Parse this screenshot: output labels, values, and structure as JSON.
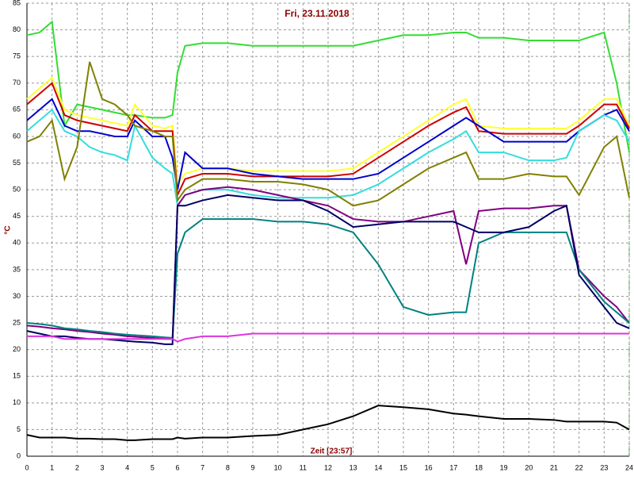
{
  "chart_data": {
    "type": "line",
    "title": "Fri, 23.11.2018",
    "xlabel": "Zeit [23:57]",
    "ylabel": "°C",
    "x": [
      0,
      0.5,
      1,
      1.5,
      2,
      2.5,
      3,
      3.5,
      4,
      4.3,
      5,
      5.5,
      5.8,
      6,
      6.3,
      7,
      8,
      9,
      10,
      11,
      12,
      13,
      14,
      15,
      16,
      17,
      17.5,
      18,
      19,
      20,
      21,
      21.5,
      22,
      23,
      23.5,
      24
    ],
    "series": [
      {
        "color": "#33dd33",
        "values": [
          79,
          79.5,
          81.5,
          62,
          66,
          65.5,
          65,
          64.5,
          64,
          64,
          63.5,
          63.5,
          64,
          72,
          77,
          77.5,
          77.5,
          77,
          77,
          77,
          77,
          77,
          78,
          79,
          79,
          79.5,
          79.5,
          78.5,
          78.5,
          78,
          78,
          78,
          78,
          79.5,
          70,
          57
        ]
      },
      {
        "color": "#ffff33",
        "values": [
          67,
          69,
          71,
          65,
          64,
          63.5,
          63,
          62.5,
          62,
          66,
          62,
          61.5,
          62,
          51,
          53,
          54,
          54,
          53.5,
          53.5,
          53.5,
          53.5,
          54,
          57,
          60,
          63,
          66,
          67,
          62,
          61.5,
          61.5,
          61.5,
          61.5,
          63,
          67,
          67,
          62
        ]
      },
      {
        "color": "#cc0000",
        "values": [
          66,
          68,
          70,
          64,
          63,
          62.5,
          62,
          61.5,
          61,
          64,
          61,
          61,
          61,
          49,
          52,
          53,
          53,
          52.5,
          52.5,
          52.5,
          52.5,
          53,
          56,
          59,
          62,
          64.5,
          65.5,
          61,
          60.5,
          60.5,
          60.5,
          60.5,
          62,
          66,
          66,
          61.5
        ]
      },
      {
        "color": "#0000cc",
        "values": [
          63,
          65,
          67,
          62,
          61,
          61,
          60.5,
          60,
          60,
          63,
          60,
          60,
          56,
          50,
          57,
          54,
          54,
          53,
          52.5,
          52,
          52,
          52,
          53,
          56,
          59,
          62,
          63.5,
          62,
          59,
          59,
          59,
          59,
          61,
          64,
          65,
          61
        ]
      },
      {
        "color": "#33dddd",
        "values": [
          61,
          63,
          65,
          61,
          60,
          58,
          57,
          56.5,
          55.5,
          62,
          56,
          54,
          53,
          47,
          49,
          50,
          50,
          49,
          48.5,
          48.5,
          48.5,
          49,
          51,
          54,
          57,
          59.5,
          61,
          57,
          57,
          55.5,
          55.5,
          56,
          61,
          64,
          63,
          59
        ]
      },
      {
        "color": "#808000",
        "values": [
          59,
          60,
          63,
          52,
          58,
          74,
          67,
          66,
          64,
          62,
          61,
          60,
          60,
          48,
          50,
          52,
          52,
          51.5,
          51.5,
          51,
          50,
          47,
          48,
          51,
          54,
          56,
          57,
          52,
          52,
          53,
          52.5,
          52.5,
          49,
          58,
          60,
          48.5
        ]
      },
      {
        "color": "#800080",
        "values": [
          24.5,
          24.3,
          24,
          23.8,
          23.5,
          23.3,
          23,
          22.8,
          22.5,
          22.4,
          22.2,
          22,
          22,
          47,
          49,
          50,
          50.5,
          50,
          49,
          48,
          47,
          44.5,
          44,
          44,
          45,
          46,
          36,
          46,
          46.5,
          46.5,
          47,
          47,
          35,
          30,
          28,
          25
        ]
      },
      {
        "color": "#008080",
        "values": [
          25,
          24.8,
          24.5,
          24,
          23.8,
          23.5,
          23.3,
          23,
          22.8,
          22.7,
          22.5,
          22.3,
          22.2,
          38,
          42,
          44.5,
          44.5,
          44.5,
          44,
          44,
          43.5,
          42,
          36,
          28,
          26.5,
          27,
          27,
          40,
          42,
          42,
          42,
          42,
          35,
          29,
          27,
          25
        ]
      },
      {
        "color": "#000066",
        "values": [
          23.5,
          23,
          22.5,
          22.5,
          22.2,
          22,
          22,
          21.8,
          21.6,
          21.5,
          21.3,
          21,
          21,
          47,
          47,
          48,
          49,
          48.5,
          48,
          48,
          46,
          43,
          43.5,
          44,
          44,
          44,
          43,
          42,
          42,
          43,
          46,
          47,
          34,
          28,
          25,
          24
        ]
      },
      {
        "color": "#dd33dd",
        "values": [
          22.5,
          22.5,
          22.5,
          22,
          22,
          22,
          22,
          22,
          22,
          22,
          22,
          22,
          22,
          21.5,
          22,
          22.5,
          22.5,
          23,
          23,
          23,
          23,
          23,
          23,
          23,
          23,
          23,
          23,
          23,
          23,
          23,
          23,
          23,
          23,
          23,
          23,
          23
        ]
      },
      {
        "color": "#000000",
        "values": [
          4,
          3.5,
          3.5,
          3.5,
          3.3,
          3.3,
          3.2,
          3.2,
          3,
          3,
          3.2,
          3.2,
          3.2,
          3.5,
          3.3,
          3.5,
          3.5,
          3.8,
          4,
          5,
          6,
          7.5,
          9.5,
          9.2,
          8.8,
          8,
          7.8,
          7.5,
          7,
          7,
          6.8,
          6.5,
          6.5,
          6.5,
          6.3,
          5
        ]
      }
    ],
    "xlim": [
      0,
      24
    ],
    "xticks": [
      0,
      1,
      2,
      3,
      4,
      5,
      6,
      7,
      8,
      9,
      10,
      11,
      12,
      13,
      14,
      15,
      16,
      17,
      18,
      19,
      20,
      21,
      22,
      23,
      24
    ],
    "ylim": [
      0,
      85
    ],
    "yticks": [
      0,
      5,
      10,
      15,
      20,
      25,
      30,
      35,
      40,
      45,
      50,
      55,
      60,
      65,
      70,
      75,
      80,
      85
    ],
    "grid": true
  }
}
